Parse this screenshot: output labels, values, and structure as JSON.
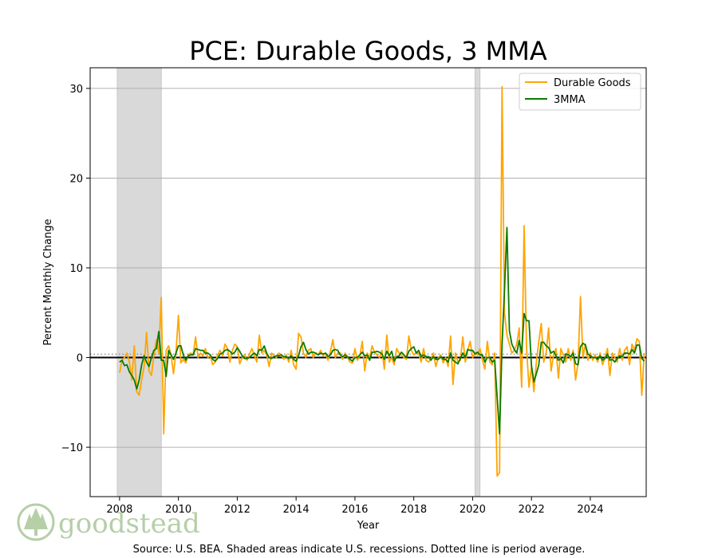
{
  "chart_data": {
    "type": "line",
    "title": "PCE: Durable Goods, 3 MMA",
    "xlabel": "Year",
    "ylabel": "Percent Monthly Change",
    "xlim": [
      2007.0,
      2025.9
    ],
    "ylim": [
      -15.5,
      32.3
    ],
    "x_ticks": [
      2008,
      2010,
      2012,
      2014,
      2016,
      2018,
      2020,
      2022,
      2024
    ],
    "y_ticks": [
      -10,
      0,
      10,
      20,
      30
    ],
    "y_tick_labels": [
      "−10",
      "0",
      "10",
      "20",
      "30"
    ],
    "grid": "horizontal",
    "legend_position": "top-right",
    "period_average": 0.38,
    "recessions": [
      [
        2007.92,
        2009.42
      ],
      [
        2020.08,
        2020.25
      ]
    ],
    "series_start": 2008.0,
    "series": [
      {
        "name": "Durable Goods",
        "color": "#FFA500",
        "values": [
          -1.7,
          -0.3,
          0.0,
          0.5,
          -0.5,
          -2.5,
          1.3,
          -3.8,
          -4.2,
          -2.5,
          -1.0,
          2.8,
          -1.5,
          -2.0,
          0.3,
          2.0,
          0.5,
          6.7,
          -8.5,
          0.8,
          1.3,
          0.3,
          -1.8,
          0.5,
          4.7,
          -0.6,
          -0.2,
          -0.6,
          0.3,
          0.5,
          0.3,
          2.3,
          0.0,
          0.5,
          0.2,
          1.0,
          0.0,
          0.2,
          -0.8,
          -0.5,
          0.3,
          0.8,
          0.2,
          1.5,
          1.0,
          -0.5,
          0.8,
          1.5,
          1.2,
          -0.7,
          0.0,
          0.3,
          -0.3,
          0.4,
          1.0,
          0.2,
          -0.5,
          2.5,
          0.5,
          0.8,
          0.3,
          -1.0,
          0.5,
          0.2,
          0.0,
          0.5,
          0.3,
          -0.2,
          0.3,
          -0.5,
          0.8,
          -0.8,
          -1.3,
          2.7,
          2.3,
          0.5,
          0.0,
          0.8,
          1.0,
          0.0,
          0.5,
          0.3,
          0.8,
          0.2,
          0.5,
          -0.3,
          0.7,
          2.0,
          0.0,
          0.5,
          0.5,
          -0.2,
          0.5,
          0.0,
          -0.5,
          -0.6,
          1.0,
          -0.3,
          0.2,
          1.8,
          -1.5,
          0.5,
          0.0,
          1.3,
          0.6,
          0.3,
          0.0,
          0.8,
          -1.3,
          2.5,
          -0.5,
          0.0,
          -0.8,
          1.0,
          0.5,
          0.3,
          0.0,
          -0.2,
          2.4,
          0.8,
          0.3,
          0.5,
          0.5,
          -0.5,
          1.0,
          -0.3,
          -0.5,
          -0.2,
          0.5,
          -1.0,
          0.0,
          0.3,
          -0.6,
          0.0,
          -1.0,
          2.4,
          -3.0,
          0.5,
          -0.5,
          -0.3,
          2.3,
          -0.5,
          0.8,
          1.8,
          0.0,
          0.5,
          0.3,
          1.0,
          -0.3,
          -1.3,
          1.8,
          -0.5,
          -0.8,
          0.5,
          -13.2,
          -12.8,
          30.2,
          5.0,
          2.5,
          1.5,
          0.5,
          0.8,
          1.5,
          3.3,
          -3.3,
          14.7,
          1.0,
          -3.3,
          -1.0,
          -3.8,
          -0.5,
          1.8,
          3.8,
          -0.5,
          0.5,
          3.3,
          -1.5,
          0.3,
          1.0,
          -2.3,
          1.0,
          0.3,
          -0.5,
          1.0,
          -0.3,
          0.8,
          -2.5,
          -0.6,
          6.8,
          0.0,
          1.5,
          -0.3,
          0.5,
          -0.3,
          0.3,
          -0.5,
          0.5,
          -0.8,
          0.0,
          1.0,
          -2.0,
          0.5,
          0.0,
          -0.5,
          1.0,
          -0.3,
          0.8,
          1.2,
          -0.8,
          1.5,
          0.8,
          2.1,
          1.8,
          -4.2,
          0.5
        ]
      },
      {
        "name": "3MMA",
        "color": "#0A7A00",
        "values": [
          -0.5,
          -0.3,
          -0.9,
          -0.8,
          -1.6,
          -2.0,
          -2.5,
          -3.5,
          -2.5,
          -0.8,
          0.2,
          -0.5,
          -1.0,
          0.0,
          0.8,
          1.0,
          2.9,
          -0.3,
          -0.3,
          -2.1,
          0.8,
          0.3,
          -0.2,
          0.5,
          1.3,
          1.3,
          0.3,
          -0.3,
          0.2,
          0.3,
          0.3,
          1.0,
          0.9,
          0.8,
          0.8,
          0.5,
          0.5,
          0.3,
          -0.2,
          -0.4,
          -0.1,
          0.4,
          0.5,
          0.8,
          0.9,
          0.7,
          0.4,
          0.6,
          1.1,
          0.7,
          0.2,
          -0.1,
          -0.1,
          0.0,
          0.3,
          0.5,
          0.2,
          0.9,
          0.8,
          1.3,
          0.5,
          0.0,
          -0.1,
          0.1,
          0.2,
          0.2,
          0.3,
          0.1,
          0.1,
          -0.1,
          0.2,
          -0.2,
          -0.4,
          0.2,
          1.2,
          1.7,
          0.9,
          0.4,
          0.6,
          0.6,
          0.5,
          0.3,
          0.5,
          0.4,
          0.5,
          0.1,
          0.3,
          0.8,
          0.9,
          0.8,
          0.3,
          0.1,
          0.3,
          0.1,
          -0.2,
          -0.4,
          0.0,
          0.0,
          0.3,
          0.6,
          0.2,
          0.3,
          -0.3,
          0.6,
          0.6,
          0.7,
          0.6,
          0.4,
          -0.2,
          0.7,
          0.2,
          0.7,
          -0.4,
          0.1,
          0.2,
          0.6,
          0.3,
          0.0,
          0.7,
          1.0,
          1.2,
          0.5,
          0.8,
          0.1,
          0.3,
          0.1,
          0.1,
          -0.3,
          0.1,
          -0.2,
          -0.2,
          0.1,
          -0.2,
          -0.2,
          -0.5,
          0.5,
          -0.3,
          -0.5,
          -0.7,
          -0.1,
          0.5,
          0.0,
          0.9,
          0.8,
          0.8,
          0.4,
          0.6,
          0.3,
          0.3,
          -0.5,
          0.0,
          0.0,
          -0.5,
          -0.3,
          -4.4,
          -8.5,
          1.4,
          7.5,
          14.5,
          3.0,
          1.5,
          0.9,
          0.5,
          1.9,
          0.5,
          4.9,
          4.1,
          4.1,
          -0.9,
          -2.7,
          -1.8,
          -0.8,
          1.7,
          1.7,
          1.3,
          1.1,
          0.5,
          0.7,
          0.2,
          -0.3,
          -0.1,
          -0.6,
          0.4,
          0.3,
          0.1,
          0.5,
          -0.7,
          -0.8,
          1.2,
          1.6,
          1.4,
          0.4,
          0.2,
          0.0,
          0.0,
          -0.2,
          0.2,
          -0.3,
          -0.1,
          0.4,
          -0.3,
          -0.2,
          -0.5,
          -0.1,
          0.2,
          0.1,
          0.5,
          0.5,
          0.4,
          0.9,
          0.5,
          1.4,
          1.4,
          -0.1,
          -0.4
        ]
      }
    ],
    "source_text": "Source: U.S. BEA. Shaded areas indicate U.S. recessions. Dotted line is period average."
  },
  "logo": {
    "name": "goodstead"
  },
  "colors": {
    "recession_fill": "#d9d9d9",
    "grid": "#b0b0b0",
    "zero_line": "#000000",
    "average_line": "#808080",
    "logo": "#b5cfa7"
  }
}
